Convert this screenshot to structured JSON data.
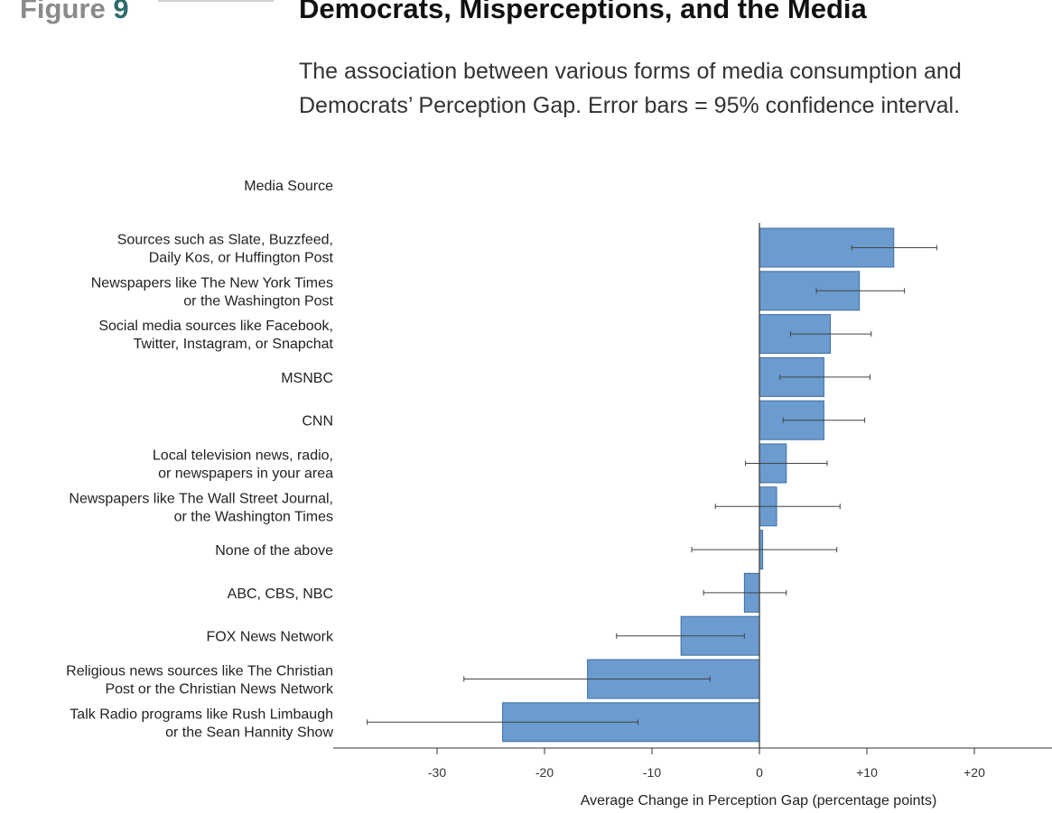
{
  "header": {
    "figure_word": "Figure",
    "figure_number": "9",
    "title": "Democrats, Misperceptions, and the Media",
    "subtitle": "The association between various forms of media consumption and Democrats’ Perception Gap. Error bars = 95% confidence interval."
  },
  "colors": {
    "bar": "#6b9bcf",
    "bar_stroke": "#3f6ea3",
    "axis": "#333333",
    "error_bar": "#444444",
    "text": "#222222"
  },
  "chart_data": {
    "type": "bar",
    "orientation": "horizontal",
    "category_header": "Media Source",
    "xlabel": "Average Change in Perception Gap (percentage points)",
    "ylabel": "",
    "xlim": [
      -39,
      27
    ],
    "x_ticks": [
      {
        "value": -30,
        "label": "-30"
      },
      {
        "value": -20,
        "label": "-20"
      },
      {
        "value": -10,
        "label": "-10"
      },
      {
        "value": 0,
        "label": "0"
      },
      {
        "value": 10,
        "label": "+10"
      },
      {
        "value": 20,
        "label": "+20"
      }
    ],
    "grid": false,
    "categories": [
      [
        "Sources such as Slate, Buzzfeed,",
        "Daily Kos, or Huffington Post"
      ],
      [
        "Newspapers like The New York Times",
        "or the Washington Post"
      ],
      [
        "Social media sources like Facebook,",
        "Twitter, Instagram, or Snapchat"
      ],
      [
        "MSNBC"
      ],
      [
        "CNN"
      ],
      [
        "Local television news, radio,",
        "or newspapers in your area"
      ],
      [
        "Newspapers like The Wall Street Journal,",
        "or the Washington Times"
      ],
      [
        "None of the above"
      ],
      [
        "ABC, CBS, NBC"
      ],
      [
        "FOX News Network"
      ],
      [
        "Religious news sources like The Christian",
        "Post or the Christian News Network"
      ],
      [
        "Talk Radio programs like Rush Limbaugh",
        "or the Sean Hannity Show"
      ]
    ],
    "values": [
      12.5,
      9.3,
      6.6,
      6.0,
      6.0,
      2.5,
      1.6,
      0.3,
      -1.4,
      -7.3,
      -16.0,
      -23.9
    ],
    "ci_low": [
      8.6,
      5.3,
      2.9,
      1.9,
      2.2,
      -1.3,
      -4.1,
      -6.3,
      -5.2,
      -13.3,
      -27.5,
      -36.5
    ],
    "ci_high": [
      16.5,
      13.5,
      10.4,
      10.3,
      9.8,
      6.3,
      7.5,
      7.2,
      2.5,
      -1.4,
      -4.6,
      -11.3
    ]
  }
}
